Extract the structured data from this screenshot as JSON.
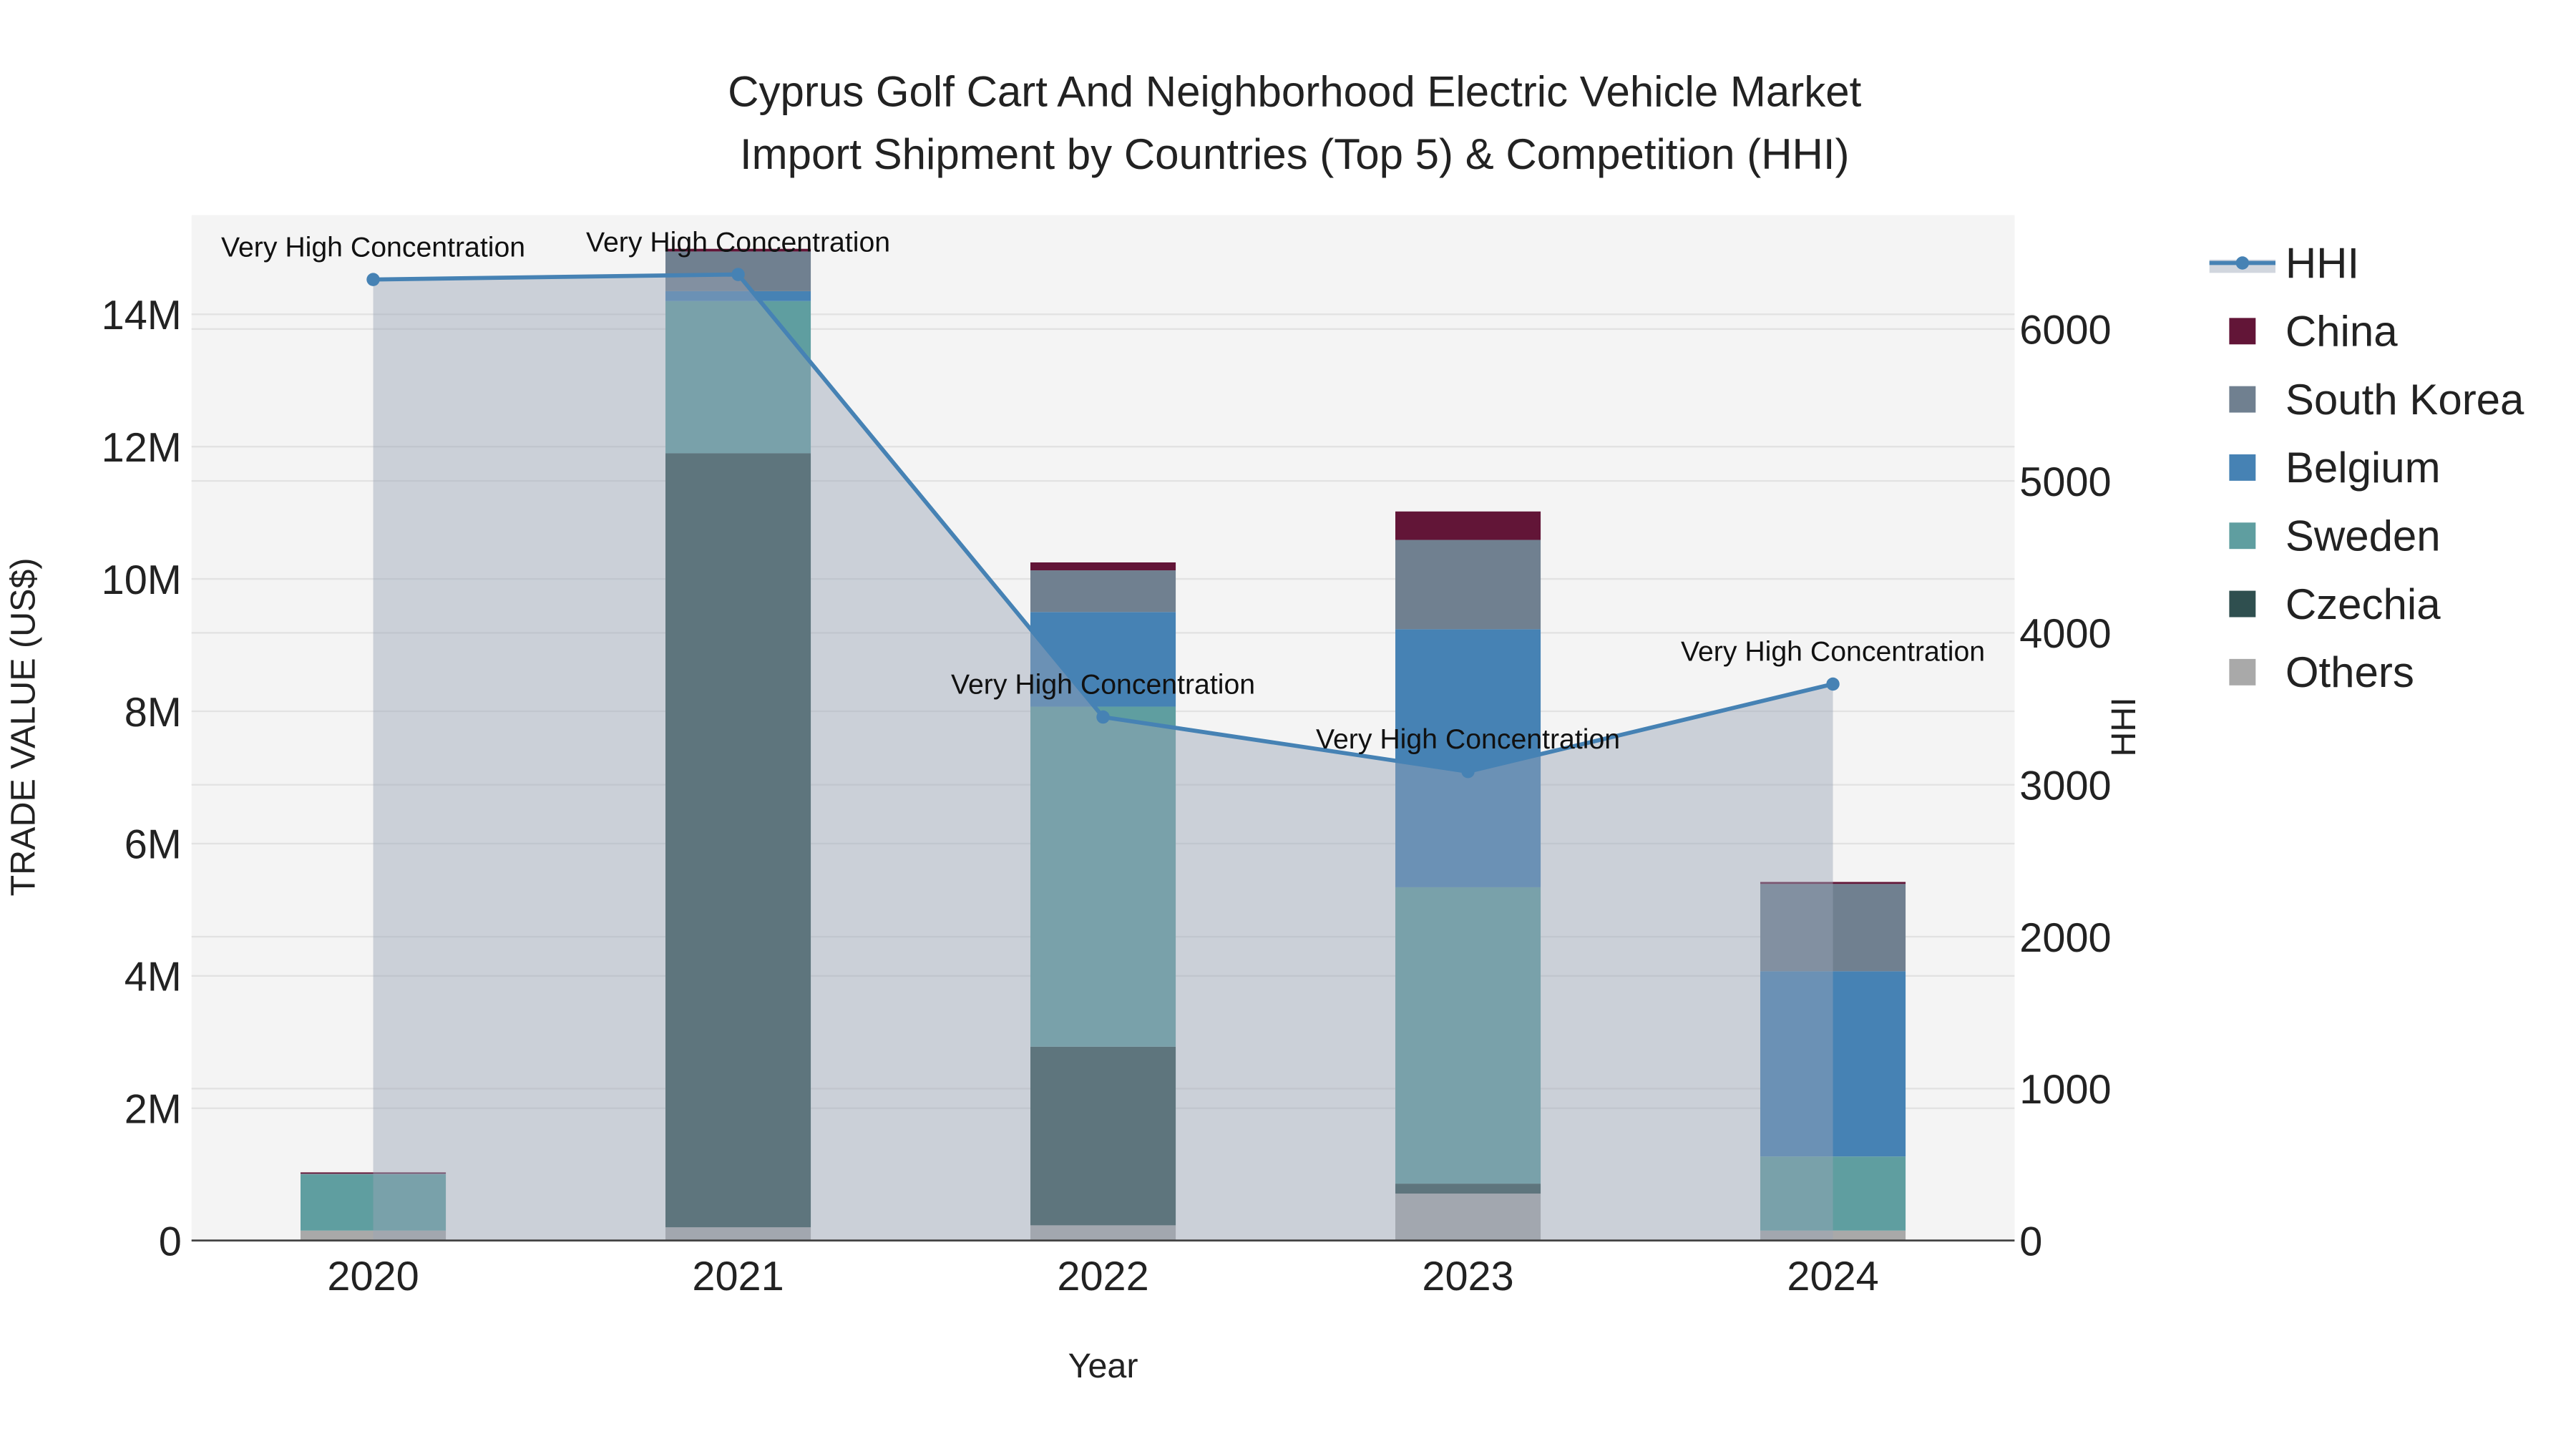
{
  "chart_data": {
    "type": "bar",
    "title_line1": "Cyprus Golf Cart And Neighborhood Electric Vehicle Market",
    "title_line2": "Import Shipment by Countries (Top 5) & Competition (HHI)",
    "xlabel": "Year",
    "ylabel": "TRADE VALUE (US$)",
    "y2label": "HHI",
    "categories": [
      "2020",
      "2021",
      "2022",
      "2023",
      "2024"
    ],
    "ylim": [
      0,
      15.5
    ],
    "y_unit": "M",
    "yticks": [
      0,
      2,
      4,
      6,
      8,
      10,
      12,
      14
    ],
    "ytick_labels": [
      "0",
      "2M",
      "4M",
      "6M",
      "8M",
      "10M",
      "12M",
      "14M"
    ],
    "y2lim": [
      0,
      6750
    ],
    "y2ticks": [
      "0",
      "1000",
      "2000",
      "3000",
      "4000",
      "5000",
      "6000"
    ],
    "series": [
      {
        "name": "Others",
        "color": "#a9a9a9",
        "values": [
          0.15,
          0.2,
          0.23,
          0.71,
          0.15
        ]
      },
      {
        "name": "Czechia",
        "color": "#2f4f4f",
        "values": [
          0.0,
          11.7,
          2.7,
          0.15,
          0.0
        ]
      },
      {
        "name": "Sweden",
        "color": "#5f9ea0",
        "values": [
          0.85,
          2.3,
          5.14,
          4.48,
          1.12
        ]
      },
      {
        "name": "Belgium",
        "color": "#4682b4",
        "values": [
          0.0,
          0.15,
          1.43,
          3.9,
          2.8
        ]
      },
      {
        "name": "South Korea",
        "color": "#708090",
        "values": [
          0.01,
          0.6,
          0.63,
          1.35,
          1.32
        ]
      },
      {
        "name": "China",
        "color": "#621537",
        "values": [
          0.02,
          0.04,
          0.12,
          0.43,
          0.03
        ]
      }
    ],
    "hhi": {
      "name": "HHI",
      "color": "#4682b4",
      "values": [
        6326,
        6359,
        3446,
        3087,
        3663
      ],
      "annotations": [
        "Very High Concentration",
        "Very High Concentration",
        "Very High Concentration",
        "Very High Concentration",
        "Very High Concentration"
      ]
    },
    "legend_order": [
      "HHI",
      "China",
      "South Korea",
      "Belgium",
      "Sweden",
      "Czechia",
      "Others"
    ],
    "legend_placement": "right",
    "grid": true
  }
}
